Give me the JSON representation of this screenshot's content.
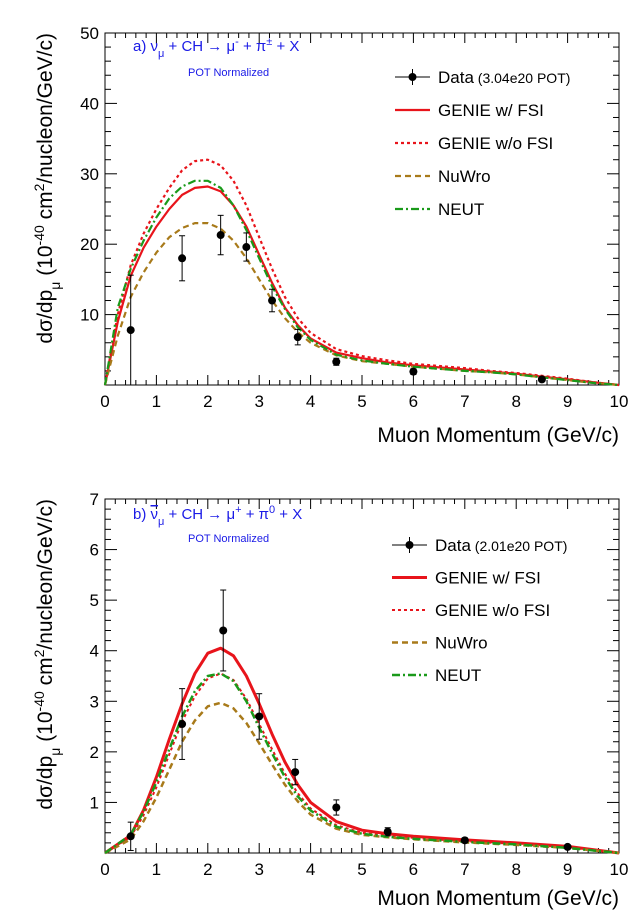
{
  "chart_data": [
    {
      "type": "line",
      "panel_label": "a)",
      "title_parts": {
        "nu": "ν",
        "sub": "μ",
        "rest1": " + CH ",
        "arrow": "→",
        "mu": " μ",
        "mu_sup": "-",
        "rest2": " + π",
        "pi_sup": "±",
        "rest3": " + X"
      },
      "subtitle": "POT Normalized",
      "xlabel": "Muon Momentum (GeV/c)",
      "ylabel_parts": {
        "a": "dσ/dp",
        "a_sub": "μ",
        "b": " (10",
        "b_sup": "-40",
        "c": " cm",
        "c_sup": "2",
        "d": "/nucleon/GeV/c)"
      },
      "xlim": [
        0,
        10
      ],
      "ylim": [
        0,
        50
      ],
      "xticks": [
        0,
        1,
        2,
        3,
        4,
        5,
        6,
        7,
        8,
        9,
        10
      ],
      "yticks": [
        10,
        20,
        30,
        40,
        50
      ],
      "legend": [
        {
          "label": "Data",
          "extra": "(3.04e20 POT)",
          "kind": "data"
        },
        {
          "label": "GENIE w/ FSI",
          "extra": "",
          "kind": "line",
          "color": "#e8141b",
          "dash": "",
          "width": 2.2
        },
        {
          "label": "GENIE w/o FSI",
          "extra": "",
          "kind": "line",
          "color": "#e8141b",
          "dash": "3,3",
          "width": 2.2
        },
        {
          "label": "NuWro",
          "extra": "",
          "kind": "line",
          "color": "#a87a1a",
          "dash": "6,4",
          "width": 2.2
        },
        {
          "label": "NEUT",
          "extra": "",
          "kind": "line",
          "color": "#1a9a1a",
          "dash": "8,3,2,3",
          "width": 2.2
        }
      ],
      "data_points": [
        {
          "x": 0.5,
          "y": 7.8,
          "err": 7.8
        },
        {
          "x": 1.5,
          "y": 18.0,
          "err": 3.2
        },
        {
          "x": 2.25,
          "y": 21.3,
          "err": 2.8
        },
        {
          "x": 2.75,
          "y": 19.6,
          "err": 2.0
        },
        {
          "x": 3.25,
          "y": 12.0,
          "err": 1.6
        },
        {
          "x": 3.75,
          "y": 6.8,
          "err": 1.1
        },
        {
          "x": 4.5,
          "y": 3.3,
          "err": 0.5
        },
        {
          "x": 6.0,
          "y": 1.9,
          "err": 0.4
        },
        {
          "x": 8.5,
          "y": 0.8,
          "err": 0.2
        }
      ],
      "curves": [
        {
          "name": "GENIE w/ FSI",
          "x": [
            0,
            0.25,
            0.5,
            0.75,
            1,
            1.25,
            1.5,
            1.75,
            2,
            2.25,
            2.5,
            2.75,
            3,
            3.25,
            3.5,
            3.75,
            4,
            4.5,
            5,
            5.5,
            6,
            6.5,
            7,
            7.5,
            8,
            8.5,
            9,
            9.5,
            10
          ],
          "y": [
            0,
            9,
            15.5,
            19.5,
            22.5,
            25,
            27,
            28,
            28.2,
            27.5,
            25.5,
            22.5,
            18.5,
            14.5,
            11,
            8.5,
            6.6,
            4.6,
            3.8,
            3.2,
            2.8,
            2.5,
            2.2,
            1.9,
            1.6,
            1.2,
            0.8,
            0.4,
            0
          ]
        },
        {
          "name": "GENIE w/o FSI",
          "x": [
            0,
            0.25,
            0.5,
            0.75,
            1,
            1.25,
            1.5,
            1.75,
            2,
            2.25,
            2.5,
            2.75,
            3,
            3.25,
            3.5,
            3.75,
            4,
            4.5,
            5,
            5.5,
            6,
            6.5,
            7,
            7.5,
            8,
            8.5,
            9,
            9.5,
            10
          ],
          "y": [
            0,
            10,
            17,
            21.5,
            25,
            28,
            30.5,
            31.8,
            32,
            31.2,
            29,
            25.5,
            21,
            16.5,
            12.5,
            9.5,
            7.4,
            5.1,
            4.1,
            3.5,
            3.0,
            2.7,
            2.4,
            2.0,
            1.7,
            1.3,
            0.9,
            0.4,
            0
          ]
        },
        {
          "name": "NuWro",
          "x": [
            0,
            0.25,
            0.5,
            0.75,
            1,
            1.25,
            1.5,
            1.75,
            2,
            2.25,
            2.5,
            2.75,
            3,
            3.25,
            3.5,
            3.75,
            4,
            4.5,
            5,
            5.5,
            6,
            6.5,
            7,
            7.5,
            8,
            8.5,
            9,
            9.5,
            10
          ],
          "y": [
            0,
            7,
            12.5,
            16,
            18.8,
            21,
            22.3,
            23,
            23,
            22.2,
            20.5,
            18,
            15,
            12,
            9.5,
            7.5,
            6,
            4.2,
            3.4,
            3.0,
            2.6,
            2.3,
            2.0,
            1.8,
            1.5,
            1.1,
            0.7,
            0.3,
            0
          ]
        },
        {
          "name": "NEUT",
          "x": [
            0,
            0.25,
            0.5,
            0.75,
            1,
            1.25,
            1.5,
            1.75,
            2,
            2.25,
            2.5,
            2.75,
            3,
            3.25,
            3.5,
            3.75,
            4,
            4.5,
            5,
            5.5,
            6,
            6.5,
            7,
            7.5,
            8,
            8.5,
            9,
            9.5,
            10
          ],
          "y": [
            0,
            11,
            16.5,
            20.5,
            23.8,
            26.5,
            28.2,
            29,
            29,
            28,
            25.5,
            22,
            18,
            14,
            10.8,
            8.2,
            6.4,
            4.3,
            3.5,
            3.0,
            2.6,
            2.3,
            2.0,
            1.8,
            1.5,
            1.1,
            0.7,
            0.3,
            0
          ]
        }
      ]
    },
    {
      "type": "line",
      "panel_label": "b)",
      "title_parts": {
        "nu": "ν",
        "sub": "μ",
        "rest1": " + CH ",
        "arrow": "→",
        "mu": " μ",
        "mu_sup": "+",
        "rest2": " + π",
        "pi_sup": "0",
        "rest3": " + X",
        "bar": true
      },
      "subtitle": "POT Normalized",
      "xlabel": "Muon Momentum (GeV/c)",
      "ylabel_parts": {
        "a": "dσ/dp",
        "a_sub": "μ",
        "b": " (10",
        "b_sup": "-40",
        "c": " cm",
        "c_sup": "2",
        "d": "/nucleon/GeV/c)"
      },
      "xlim": [
        0,
        10
      ],
      "ylim": [
        0,
        7
      ],
      "xticks": [
        0,
        1,
        2,
        3,
        4,
        5,
        6,
        7,
        8,
        9,
        10
      ],
      "yticks": [
        1,
        2,
        3,
        4,
        5,
        6,
        7
      ],
      "legend": [
        {
          "label": "Data",
          "extra": "(2.01e20 POT)",
          "kind": "data"
        },
        {
          "label": "GENIE w/ FSI",
          "extra": "",
          "kind": "line",
          "color": "#e8141b",
          "dash": "",
          "width": 3
        },
        {
          "label": "GENIE w/o FSI",
          "extra": "",
          "kind": "line",
          "color": "#e8141b",
          "dash": "3,3",
          "width": 2
        },
        {
          "label": "NuWro",
          "extra": "",
          "kind": "line",
          "color": "#a87a1a",
          "dash": "6,4",
          "width": 2.5
        },
        {
          "label": "NEUT",
          "extra": "",
          "kind": "line",
          "color": "#1a9a1a",
          "dash": "8,3,2,3",
          "width": 2.5
        }
      ],
      "data_points": [
        {
          "x": 0.5,
          "y": 0.33,
          "err": 0.28
        },
        {
          "x": 1.5,
          "y": 2.55,
          "err": 0.7
        },
        {
          "x": 2.3,
          "y": 4.4,
          "err": 0.8
        },
        {
          "x": 3.0,
          "y": 2.7,
          "err": 0.45
        },
        {
          "x": 3.7,
          "y": 1.6,
          "err": 0.25
        },
        {
          "x": 4.5,
          "y": 0.9,
          "err": 0.15
        },
        {
          "x": 5.5,
          "y": 0.42,
          "err": 0.08
        },
        {
          "x": 7.0,
          "y": 0.25,
          "err": 0.05
        },
        {
          "x": 9.0,
          "y": 0.12,
          "err": 0.03
        }
      ],
      "curves": [
        {
          "name": "GENIE w/ FSI",
          "x": [
            0,
            0.5,
            0.75,
            1,
            1.25,
            1.5,
            1.75,
            2,
            2.25,
            2.5,
            2.75,
            3,
            3.25,
            3.5,
            3.75,
            4,
            4.5,
            5,
            5.5,
            6,
            7,
            8,
            9,
            10
          ],
          "y": [
            0,
            0.35,
            0.85,
            1.5,
            2.25,
            2.95,
            3.55,
            3.95,
            4.05,
            3.9,
            3.5,
            2.95,
            2.35,
            1.8,
            1.35,
            1.0,
            0.62,
            0.45,
            0.38,
            0.33,
            0.26,
            0.2,
            0.13,
            0
          ]
        },
        {
          "name": "GENIE w/o FSI",
          "x": [
            0,
            0.5,
            0.75,
            1,
            1.25,
            1.5,
            1.75,
            2,
            2.25,
            2.5,
            2.75,
            3,
            3.25,
            3.5,
            3.75,
            4,
            4.5,
            5,
            5.5,
            6,
            7,
            8,
            9,
            10
          ],
          "y": [
            0,
            0.32,
            0.75,
            1.3,
            1.95,
            2.6,
            3.1,
            3.45,
            3.55,
            3.42,
            3.05,
            2.55,
            2.05,
            1.57,
            1.18,
            0.88,
            0.55,
            0.4,
            0.34,
            0.3,
            0.23,
            0.18,
            0.11,
            0
          ]
        },
        {
          "name": "NuWro",
          "x": [
            0,
            0.5,
            0.75,
            1,
            1.25,
            1.5,
            1.75,
            2,
            2.25,
            2.5,
            2.75,
            3,
            3.25,
            3.5,
            3.75,
            4,
            4.5,
            5,
            5.5,
            6,
            7,
            8,
            9,
            10
          ],
          "y": [
            0,
            0.27,
            0.63,
            1.1,
            1.65,
            2.2,
            2.62,
            2.9,
            2.97,
            2.86,
            2.57,
            2.17,
            1.75,
            1.35,
            1.02,
            0.76,
            0.48,
            0.36,
            0.31,
            0.27,
            0.21,
            0.16,
            0.1,
            0
          ]
        },
        {
          "name": "NEUT",
          "x": [
            0,
            0.5,
            0.75,
            1,
            1.25,
            1.5,
            1.75,
            2,
            2.25,
            2.5,
            2.75,
            3,
            3.25,
            3.5,
            3.75,
            4,
            4.5,
            5,
            5.5,
            6,
            7,
            8,
            9,
            10
          ],
          "y": [
            0,
            0.36,
            0.82,
            1.4,
            2.05,
            2.7,
            3.2,
            3.5,
            3.55,
            3.4,
            3.0,
            2.48,
            1.97,
            1.5,
            1.12,
            0.84,
            0.52,
            0.38,
            0.32,
            0.28,
            0.22,
            0.17,
            0.1,
            0
          ]
        }
      ]
    }
  ]
}
